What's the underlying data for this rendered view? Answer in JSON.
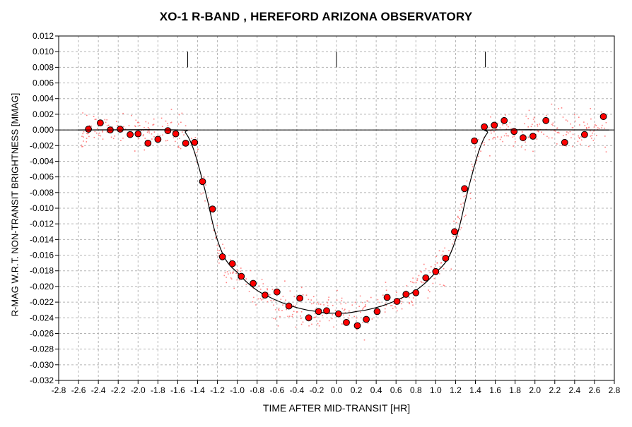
{
  "chart_data": {
    "type": "scatter",
    "title": "XO-1 R-BAND , HEREFORD ARIZONA OBSERVATORY",
    "xlabel": "TIME AFTER MID-TRANSIT [HR]",
    "ylabel": "R-MAG W.R.T. NON-TRANSIT BRIGHTNESS [MMAG]",
    "xlim": [
      -2.8,
      2.8
    ],
    "ylim": [
      -0.032,
      0.012
    ],
    "x_ticks": [
      -2.8,
      -2.6,
      -2.4,
      -2.2,
      -2.0,
      -1.8,
      -1.6,
      -1.4,
      -1.2,
      -1.0,
      -0.8,
      -0.6,
      -0.4,
      -0.2,
      0.0,
      0.2,
      0.4,
      0.6,
      0.8,
      1.0,
      1.2,
      1.4,
      1.6,
      1.8,
      2.0,
      2.2,
      2.4,
      2.6,
      2.8
    ],
    "x_tick_labels": [
      "-2.8",
      "-2.6",
      "-2.4",
      "-2.2",
      "-2.0",
      "-1.8",
      "-1.6",
      "-1.4",
      "-1.2",
      "-1.0",
      "-0.8",
      "-0.6",
      "-0.4",
      "-0.2",
      "0.0",
      "0.2",
      "0.4",
      "0.6",
      "0.8",
      "1.0",
      "1.2",
      "1.4",
      "1.6",
      "1.8",
      "2.0",
      "2.2",
      "2.4",
      "2.6",
      "2.8"
    ],
    "y_ticks": [
      0.012,
      0.01,
      0.008,
      0.006,
      0.004,
      0.002,
      0.0,
      -0.002,
      -0.004,
      -0.006,
      -0.008,
      -0.01,
      -0.012,
      -0.014,
      -0.016,
      -0.018,
      -0.02,
      -0.022,
      -0.024,
      -0.026,
      -0.028,
      -0.03,
      -0.032
    ],
    "y_tick_labels": [
      "0.012",
      "0.010",
      "0.008",
      "0.006",
      "0.004",
      "0.002",
      "0.000",
      "-0.002",
      "-0.004",
      "-0.006",
      "-0.008",
      "-0.010",
      "-0.012",
      "-0.014",
      "-0.016",
      "-0.018",
      "-0.020",
      "-0.022",
      "-0.024",
      "-0.026",
      "-0.028",
      "-0.030",
      "-0.032"
    ],
    "grid": true,
    "colors": {
      "binned_fill": "#ff0000",
      "binned_edge": "#000000",
      "raw_points": "#ff8080",
      "model_line": "#000000",
      "grid": "#b4b4b4"
    },
    "contact_markers": {
      "x": [
        -1.5,
        0.0,
        1.5
      ],
      "y_range": [
        0.008,
        0.01
      ]
    },
    "series": [
      {
        "kind": "binned",
        "x": [
          -2.5,
          -2.38,
          -2.28,
          -2.18,
          -2.08,
          -2.0,
          -1.9,
          -1.8,
          -1.7,
          -1.62,
          -1.52,
          -1.43,
          -1.35,
          -1.25,
          -1.15,
          -1.05,
          -0.96,
          -0.84,
          -0.72,
          -0.6,
          -0.48,
          -0.37,
          -0.28,
          -0.18,
          -0.1,
          0.02,
          0.1,
          0.21,
          0.3,
          0.41,
          0.51,
          0.61,
          0.7,
          0.8,
          0.9,
          1.0,
          1.1,
          1.19,
          1.29,
          1.39,
          1.49,
          1.59,
          1.69,
          1.79,
          1.88,
          1.98,
          2.11,
          2.3,
          2.5,
          2.69
        ],
        "y": [
          0.0001,
          0.0009,
          0.0,
          0.0001,
          -0.0006,
          -0.0005,
          -0.0017,
          -0.0012,
          -0.0001,
          -0.0005,
          -0.0017,
          -0.0016,
          -0.0066,
          -0.0101,
          -0.0162,
          -0.0171,
          -0.0187,
          -0.0196,
          -0.0211,
          -0.0207,
          -0.0225,
          -0.0215,
          -0.024,
          -0.0232,
          -0.0231,
          -0.0235,
          -0.0246,
          -0.025,
          -0.0242,
          -0.0232,
          -0.0214,
          -0.0219,
          -0.021,
          -0.0208,
          -0.0189,
          -0.0181,
          -0.0164,
          -0.013,
          -0.0075,
          -0.0014,
          0.0004,
          0.0006,
          0.0012,
          -0.0002,
          -0.001,
          -0.0008,
          0.0012,
          -0.0016,
          -0.0006,
          0.0017
        ]
      },
      {
        "kind": "model",
        "x": [
          -2.6,
          -1.6,
          -1.52,
          -1.44,
          -1.36,
          -1.3,
          -1.24,
          -1.18,
          -1.12,
          -1.06,
          -1.0,
          -0.9,
          -0.8,
          -0.7,
          -0.6,
          -0.5,
          -0.4,
          -0.3,
          -0.2,
          -0.1,
          0.0,
          0.1,
          0.2,
          0.3,
          0.4,
          0.5,
          0.6,
          0.7,
          0.8,
          0.9,
          1.0,
          1.06,
          1.12,
          1.18,
          1.24,
          1.3,
          1.36,
          1.44,
          1.52,
          1.6,
          2.75
        ],
        "y": [
          0.0,
          0.0,
          -0.0004,
          -0.0025,
          -0.006,
          -0.009,
          -0.0123,
          -0.0148,
          -0.0165,
          -0.0175,
          -0.0182,
          -0.0195,
          -0.0205,
          -0.0212,
          -0.0218,
          -0.0223,
          -0.0227,
          -0.023,
          -0.0232,
          -0.0234,
          -0.0234,
          -0.0234,
          -0.0232,
          -0.023,
          -0.0227,
          -0.0223,
          -0.0218,
          -0.0212,
          -0.0205,
          -0.0195,
          -0.0182,
          -0.0175,
          -0.0165,
          -0.0148,
          -0.0123,
          -0.009,
          -0.006,
          -0.0025,
          -0.0004,
          0.0,
          0.0
        ]
      }
    ]
  }
}
